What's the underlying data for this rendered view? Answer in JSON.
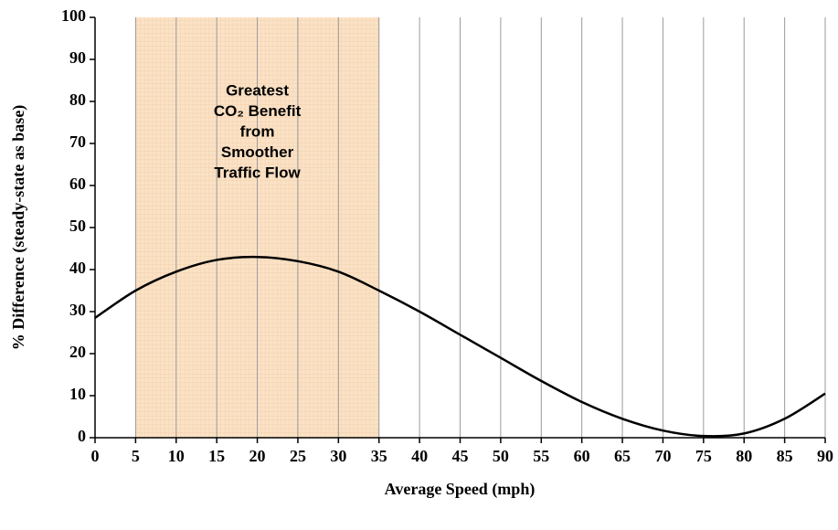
{
  "chart_data": {
    "type": "line",
    "x_label": "Average Speed (mph)",
    "y_label": "% Difference (steady-state as base)",
    "x": [
      0,
      5,
      10,
      15,
      20,
      25,
      30,
      35,
      40,
      45,
      50,
      55,
      60,
      65,
      70,
      75,
      80,
      85,
      90
    ],
    "series": [
      {
        "color": "#000000",
        "values": [
          28.5,
          35,
          39.5,
          42.3,
          43,
          42,
          39.5,
          35,
          30,
          24.5,
          19,
          13.5,
          8.5,
          4.5,
          1.7,
          0.4,
          1,
          4.5,
          10.5
        ]
      }
    ],
    "xlim": [
      0,
      90
    ],
    "xticks": [
      0,
      5,
      10,
      15,
      20,
      25,
      30,
      35,
      40,
      45,
      50,
      55,
      60,
      65,
      70,
      75,
      80,
      85,
      90
    ],
    "ylim": [
      0,
      100
    ],
    "yticks": [
      0,
      10,
      20,
      30,
      40,
      50,
      60,
      70,
      80,
      90,
      100
    ],
    "grid": "x",
    "highlight": {
      "xrange": [
        5,
        35
      ],
      "color": "#fbe2c6",
      "annotation": [
        "Greatest",
        "CO₂ Benefit",
        "from",
        "Smoother",
        "Traffic Flow"
      ]
    }
  }
}
